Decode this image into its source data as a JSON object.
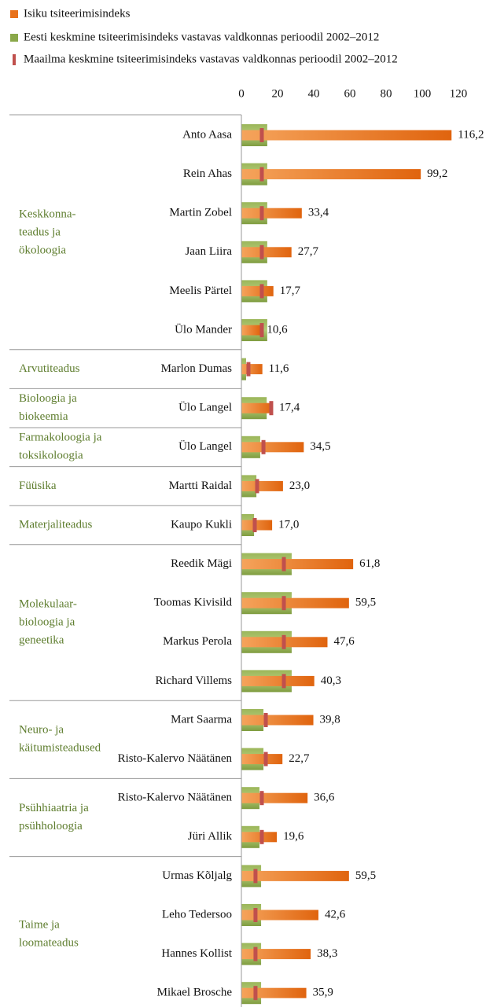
{
  "chart_data": {
    "type": "bar",
    "series": [
      {
        "name": "Isiku tsiteerimisindeks",
        "color": "#e8711a"
      },
      {
        "name": "Eesti keskmine tsiteerimisindeks vastavas valdkonnas perioodil 2002–2012",
        "color": "#8aa84a"
      },
      {
        "name": "Maailma keskmine tsiteerimisindeks vastavas valdkonnas perioodil 2002–2012",
        "color": "#c0504d"
      }
    ],
    "xlim": [
      0,
      120
    ],
    "xticks": [
      0,
      20,
      40,
      60,
      80,
      100,
      120
    ],
    "groups": [
      {
        "lines": [
          "Keskkonna-",
          "teadus ja",
          "ökoloogia"
        ],
        "estonia": 14.3,
        "world": 11.3,
        "people": [
          {
            "name": "Anto Aasa",
            "value": 116.2,
            "value_label": "116,2"
          },
          {
            "name": "Rein Ahas",
            "value": 99.2,
            "value_label": "99,2"
          },
          {
            "name": "Martin Zobel",
            "value": 33.4,
            "value_label": "33,4"
          },
          {
            "name": "Jaan Liira",
            "value": 27.7,
            "value_label": "27,7"
          },
          {
            "name": "Meelis Pärtel",
            "value": 17.7,
            "value_label": "17,7"
          },
          {
            "name": "Ülo Mander",
            "value": 10.6,
            "value_label": "10,6"
          }
        ]
      },
      {
        "lines": [
          "Arvutiteadus"
        ],
        "estonia": 2.6,
        "world": 3.9,
        "people": [
          {
            "name": "Marlon Dumas",
            "value": 11.6,
            "value_label": "11,6"
          }
        ]
      },
      {
        "lines": [
          "Bioloogia ja",
          "biokeemia"
        ],
        "estonia": 14,
        "world": 16.5,
        "people": [
          {
            "name": "Ülo Langel",
            "value": 17.4,
            "value_label": "17,4"
          }
        ]
      },
      {
        "lines": [
          "Farmakoloogia ja",
          "toksikoloogia"
        ],
        "estonia": 10.4,
        "world": 12.2,
        "people": [
          {
            "name": "Ülo Langel",
            "value": 34.5,
            "value_label": "34,5"
          }
        ]
      },
      {
        "lines": [
          "Füüsika"
        ],
        "estonia": 8.3,
        "world": 8.7,
        "people": [
          {
            "name": "Martti Raidal",
            "value": 23.0,
            "value_label": "23,0"
          }
        ]
      },
      {
        "lines": [
          "Materjaliteadus"
        ],
        "estonia": 7,
        "world": 7.4,
        "people": [
          {
            "name": "Kaupo Kukli",
            "value": 17.0,
            "value_label": "17,0"
          }
        ]
      },
      {
        "lines": [
          "Molekulaar-",
          "bioloogia ja",
          "geneetika"
        ],
        "estonia": 27.8,
        "world": 23.5,
        "people": [
          {
            "name": "Reedik Mägi",
            "value": 61.8,
            "value_label": "61,8"
          },
          {
            "name": "Toomas Kivisild",
            "value": 59.5,
            "value_label": "59,5"
          },
          {
            "name": "Markus Perola",
            "value": 47.6,
            "value_label": "47,6"
          },
          {
            "name": "Richard Villems",
            "value": 40.3,
            "value_label": "40,3"
          }
        ]
      },
      {
        "lines": [
          "Neuro- ja",
          "käitumisteadused"
        ],
        "estonia": 12.2,
        "world": 13.5,
        "people": [
          {
            "name": "Mart Saarma",
            "value": 39.8,
            "value_label": "39,8"
          },
          {
            "name": "Risto-Kalervo Näätänen",
            "value": 22.7,
            "value_label": "22,7"
          }
        ]
      },
      {
        "lines": [
          "Psühhiaatria ja",
          "psühholoogia"
        ],
        "estonia": 10,
        "world": 11.3,
        "people": [
          {
            "name": "Risto-Kalervo Näätänen",
            "value": 36.6,
            "value_label": "36,6"
          },
          {
            "name": "Jüri Allik",
            "value": 19.6,
            "value_label": "19,6"
          }
        ]
      },
      {
        "lines": [
          "Taime ja",
          "loomateadus"
        ],
        "estonia": 10.9,
        "world": 7.8,
        "people": [
          {
            "name": "Urmas Kõljalg",
            "value": 59.5,
            "value_label": "59,5"
          },
          {
            "name": "Leho Tedersoo",
            "value": 42.6,
            "value_label": "42,6"
          },
          {
            "name": "Hannes Kollist",
            "value": 38.3,
            "value_label": "38,3"
          },
          {
            "name": "Mikael Brosche",
            "value": 35.9,
            "value_label": "35,9"
          }
        ]
      }
    ]
  }
}
